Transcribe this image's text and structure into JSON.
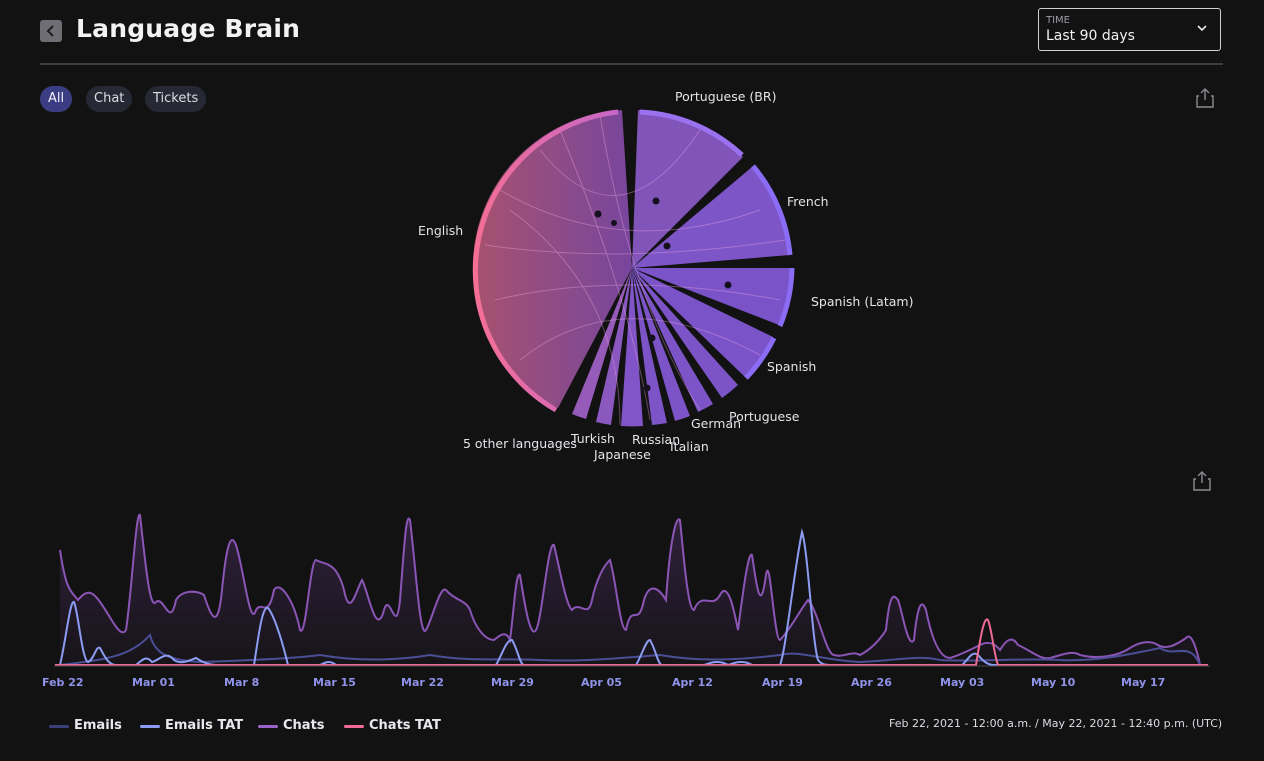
{
  "header": {
    "title": "Language Brain",
    "back_icon": "chevron-left-icon"
  },
  "time_select": {
    "label": "TIME",
    "value": "Last 90 days",
    "icon": "chevron-down-icon"
  },
  "filters": [
    {
      "label": "All",
      "active": true
    },
    {
      "label": "Chat",
      "active": false
    },
    {
      "label": "Tickets",
      "active": false
    }
  ],
  "chord": {
    "languages": [
      "Portuguese (BR)",
      "French",
      "Spanish (Latam)",
      "Spanish",
      "Portuguese",
      "German",
      "Italian",
      "Russian",
      "Japanese",
      "Turkish",
      "5 other languages",
      "English"
    ]
  },
  "chart_data": {
    "type": "area",
    "x_ticks": [
      "Feb 22",
      "Mar 01",
      "Mar 8",
      "Mar 15",
      "Mar 22",
      "Mar 29",
      "Apr 05",
      "Apr 12",
      "Apr 19",
      "Apr 26",
      "May 03",
      "May 10",
      "May 17"
    ],
    "series": [
      {
        "name": "Emails",
        "color": "#3b3f7a"
      },
      {
        "name": "Emails TAT",
        "color": "#8c9cf2"
      },
      {
        "name": "Chats",
        "color": "#9a62c9"
      },
      {
        "name": "Chats TAT",
        "color": "#f06b93"
      }
    ],
    "date_range": "Feb 22, 2021 - 12:00 a.m. / May 22, 2021 - 12:40 p.m. (UTC)"
  }
}
